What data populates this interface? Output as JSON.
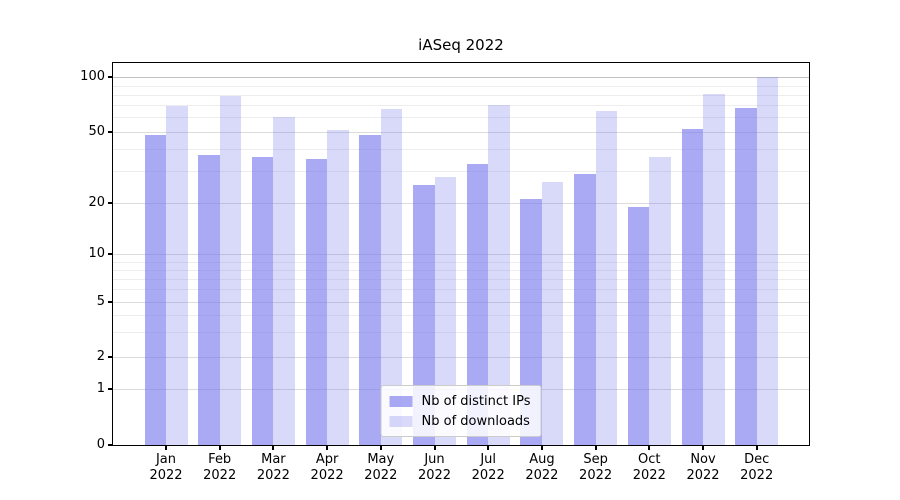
{
  "figure": {
    "title": "iASeq 2022"
  },
  "chart_data": {
    "type": "bar",
    "title": "iASeq 2022",
    "categories": [
      "Jan 2022",
      "Feb 2022",
      "Mar 2022",
      "Apr 2022",
      "May 2022",
      "Jun 2022",
      "Jul 2022",
      "Aug 2022",
      "Sep 2022",
      "Oct 2022",
      "Nov 2022",
      "Dec 2022"
    ],
    "series": [
      {
        "name": "Nb of distinct IPs",
        "slug": "distinct-ips",
        "color": "rgba(119,119,238,0.63)",
        "values": [
          48,
          37,
          36,
          35,
          48,
          25,
          33,
          21,
          29,
          19,
          52,
          68
        ]
      },
      {
        "name": "Nb of downloads",
        "slug": "downloads",
        "color": "rgba(119,119,238,0.28)",
        "values": [
          69,
          79,
          60,
          51,
          67,
          28,
          70,
          26,
          65,
          36,
          81,
          100
        ]
      }
    ],
    "xlabel": "",
    "ylabel": "",
    "yscale": "symlog",
    "ylim": [
      0,
      120
    ],
    "yticks": [
      0,
      1,
      2,
      5,
      10,
      20,
      50,
      100
    ],
    "ytick_labels": [
      "0",
      "1",
      "2",
      "5",
      "10",
      "20",
      "50",
      "100"
    ],
    "minor_yticks": [
      3,
      4,
      6,
      7,
      8,
      9,
      30,
      40,
      60,
      70,
      80,
      90
    ],
    "grid": {
      "major_color": "#dcdcdc",
      "minor_color": "#ededed",
      "top_major_color": "#c2c2c2"
    },
    "legend": {
      "position": "lower center"
    }
  }
}
